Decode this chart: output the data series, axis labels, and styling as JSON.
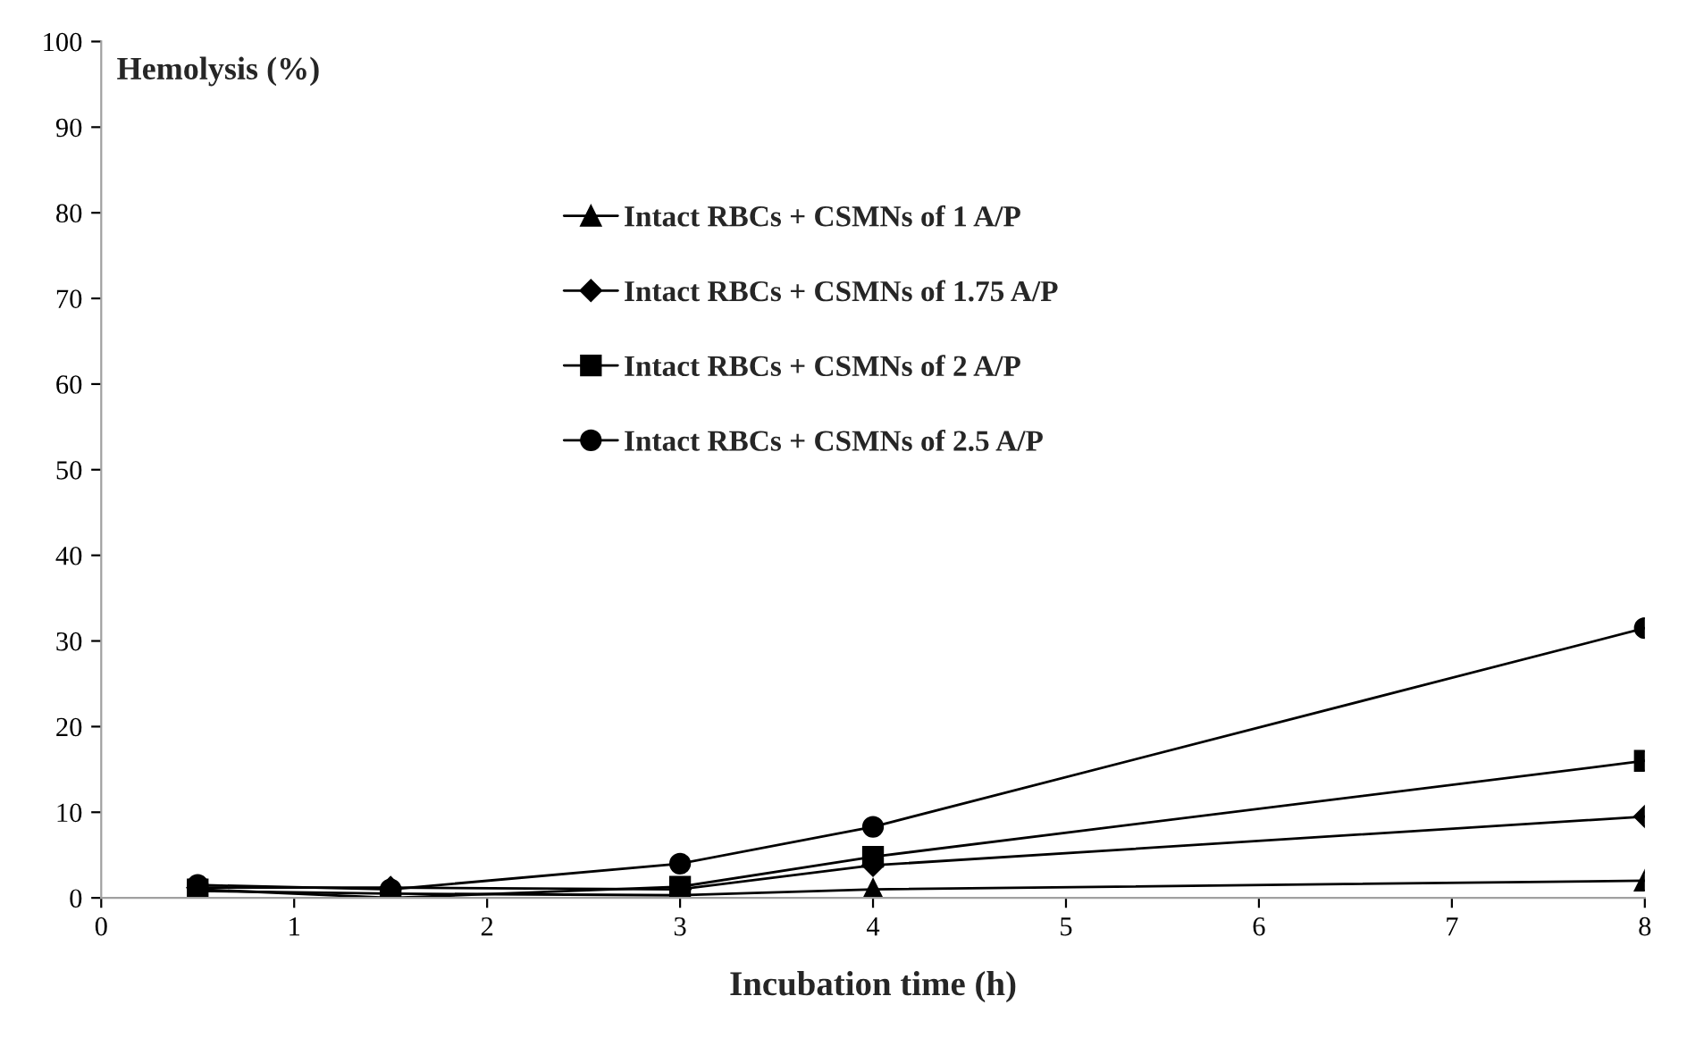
{
  "chart_data": {
    "type": "line",
    "xlabel": "Incubation time (h)",
    "ylabel": "Hemolysis (%)",
    "x": [
      0.5,
      1.5,
      3,
      4,
      8
    ],
    "series": [
      {
        "name": "Intact RBCs + CSMNs of 1 A/P",
        "color": "#000000",
        "marker": "triangle",
        "values": [
          0.8,
          0.5,
          0.3,
          1,
          2
        ]
      },
      {
        "name": "Intact RBCs + CSMNs of 1.75 A/P",
        "color": "#000000",
        "marker": "diamond",
        "values": [
          1.2,
          1.2,
          1,
          3.8,
          9.5
        ]
      },
      {
        "name": "Intact RBCs + CSMNs of 2 A/P",
        "color": "#000000",
        "marker": "square",
        "values": [
          1,
          0,
          1.3,
          4.8,
          16
        ]
      },
      {
        "name": "Intact RBCs + CSMNs of 2.5 A/P",
        "color": "#000000",
        "marker": "circle",
        "values": [
          1.5,
          1,
          4,
          8.3,
          31.5
        ]
      }
    ],
    "xlim": [
      0,
      8
    ],
    "xticks": [
      0,
      1,
      2,
      3,
      4,
      5,
      6,
      7,
      8
    ],
    "ylim": [
      0,
      100
    ],
    "yticks": [
      0,
      10,
      20,
      30,
      40,
      50,
      60,
      70,
      80,
      90,
      100
    ],
    "grid": false,
    "legend": "top",
    "line_style": "solid"
  }
}
